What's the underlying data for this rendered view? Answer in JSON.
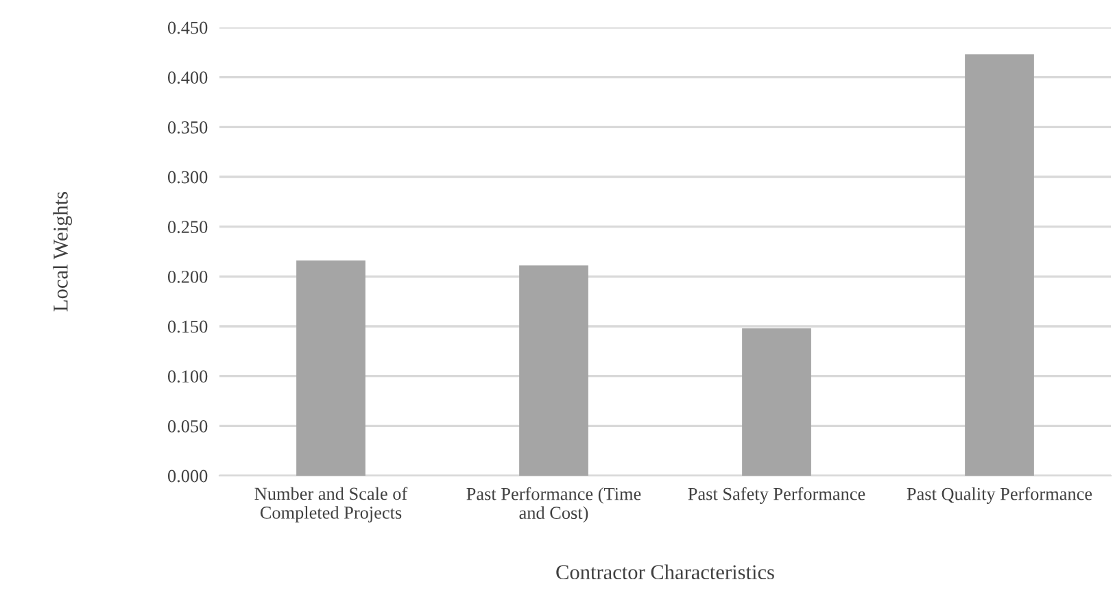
{
  "chart_data": {
    "type": "bar",
    "xlabel": "Contractor Characteristics",
    "ylabel": "Local Weights",
    "categories": [
      "Number and Scale of\nCompleted Projects",
      "Past Performance (Time\nand Cost)",
      "Past Safety Performance",
      "Past Quality Performance"
    ],
    "values": [
      0.216,
      0.211,
      0.148,
      0.423
    ],
    "color": "#a5a5a5",
    "ylim": [
      0,
      0.45
    ],
    "yticks": [
      {
        "value": 0,
        "label": "0.000"
      },
      {
        "value": 0.05,
        "label": "0.050"
      },
      {
        "value": 0.1,
        "label": "0.100"
      },
      {
        "value": 0.15,
        "label": "0.150"
      },
      {
        "value": 0.2,
        "label": "0.200"
      },
      {
        "value": 0.25,
        "label": "0.250"
      },
      {
        "value": 0.3,
        "label": "0.300"
      },
      {
        "value": 0.35,
        "label": "0.350"
      },
      {
        "value": 0.4,
        "label": "0.400"
      },
      {
        "value": 0.45,
        "label": "0.450"
      }
    ],
    "grid": "y"
  }
}
